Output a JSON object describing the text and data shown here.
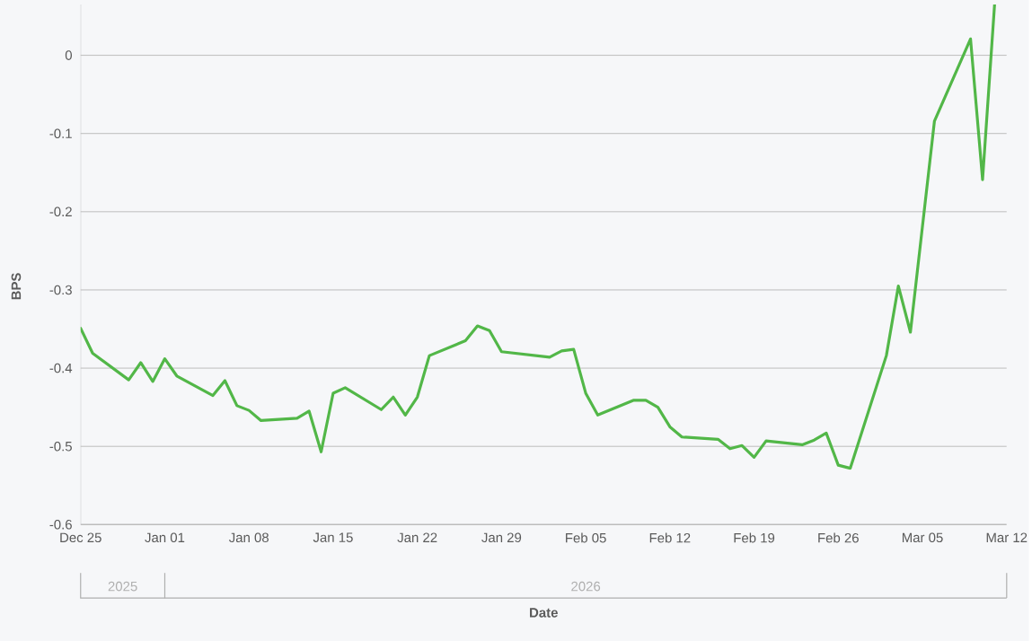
{
  "chart_data": {
    "type": "line",
    "xlabel": "Date",
    "ylabel": "BPS",
    "x": [
      "2025-12-25",
      "2025-12-26",
      "2025-12-29",
      "2025-12-30",
      "2025-12-31",
      "2026-01-01",
      "2026-01-02",
      "2026-01-05",
      "2026-01-06",
      "2026-01-07",
      "2026-01-08",
      "2026-01-09",
      "2026-01-12",
      "2026-01-13",
      "2026-01-14",
      "2026-01-15",
      "2026-01-16",
      "2026-01-19",
      "2026-01-20",
      "2026-01-21",
      "2026-01-22",
      "2026-01-23",
      "2026-01-26",
      "2026-01-27",
      "2026-01-28",
      "2026-01-29",
      "2026-02-02",
      "2026-02-03",
      "2026-02-04",
      "2026-02-05",
      "2026-02-06",
      "2026-02-09",
      "2026-02-10",
      "2026-02-11",
      "2026-02-12",
      "2026-02-13",
      "2026-02-16",
      "2026-02-17",
      "2026-02-18",
      "2026-02-19",
      "2026-02-20",
      "2026-02-23",
      "2026-02-24",
      "2026-02-25",
      "2026-02-26",
      "2026-02-27",
      "2026-03-02",
      "2026-03-03",
      "2026-03-04",
      "2026-03-06",
      "2026-03-09",
      "2026-03-10",
      "2026-03-11"
    ],
    "series": [
      {
        "color": "#52b748",
        "values": [
          -0.349,
          -0.381,
          -0.415,
          -0.393,
          -0.417,
          -0.388,
          -0.41,
          -0.435,
          -0.416,
          -0.448,
          -0.454,
          -0.467,
          -0.464,
          -0.455,
          -0.507,
          -0.432,
          -0.425,
          -0.453,
          -0.437,
          -0.46,
          -0.437,
          -0.384,
          -0.365,
          -0.346,
          -0.352,
          -0.379,
          -0.386,
          -0.378,
          -0.376,
          -0.432,
          -0.46,
          -0.441,
          -0.441,
          -0.45,
          -0.475,
          -0.488,
          -0.491,
          -0.503,
          -0.499,
          -0.514,
          -0.493,
          -0.498,
          -0.492,
          -0.483,
          -0.524,
          -0.528,
          -0.384,
          -0.295,
          -0.354,
          -0.084,
          0.021,
          -0.159,
          0.065
        ]
      }
    ],
    "xlim": [
      "2025-12-25",
      "2026-03-12"
    ],
    "xticks": [
      {
        "value": "2025-12-25",
        "label": "Dec 25"
      },
      {
        "value": "2026-01-01",
        "label": "Jan 01"
      },
      {
        "value": "2026-01-08",
        "label": "Jan 08"
      },
      {
        "value": "2026-01-15",
        "label": "Jan 15"
      },
      {
        "value": "2026-01-22",
        "label": "Jan 22"
      },
      {
        "value": "2026-01-29",
        "label": "Jan 29"
      },
      {
        "value": "2026-02-05",
        "label": "Feb 05"
      },
      {
        "value": "2026-02-12",
        "label": "Feb 12"
      },
      {
        "value": "2026-02-19",
        "label": "Feb 19"
      },
      {
        "value": "2026-02-26",
        "label": "Feb 26"
      },
      {
        "value": "2026-03-05",
        "label": "Mar 05"
      },
      {
        "value": "2026-03-12",
        "label": "Mar 12"
      }
    ],
    "ylim": [
      -0.6,
      0.065
    ],
    "yticks": [
      -0.6,
      -0.5,
      -0.4,
      -0.3,
      -0.2,
      -0.1,
      0
    ],
    "annotations": [
      "2025",
      "2026"
    ],
    "grid": "y",
    "marker": "none",
    "line_style": "solid"
  }
}
